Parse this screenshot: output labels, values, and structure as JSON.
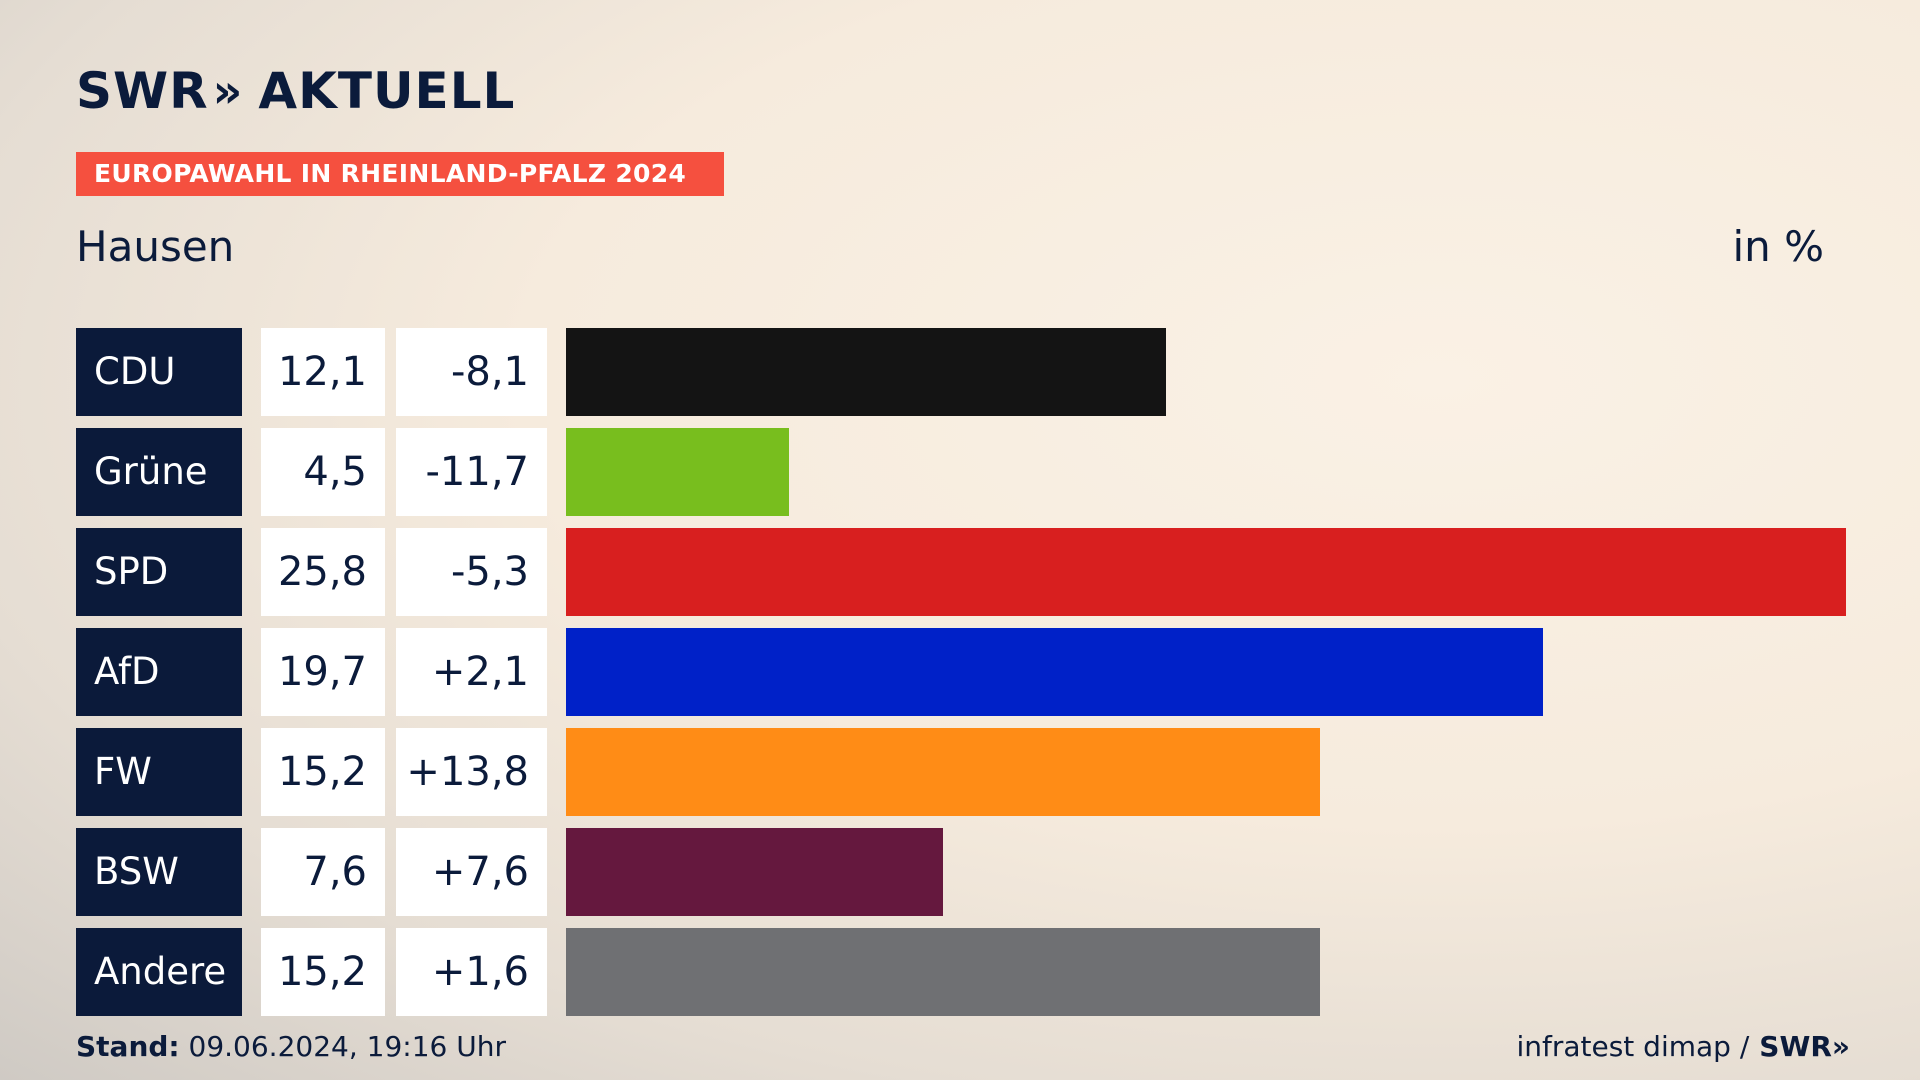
{
  "brand": {
    "swr": "SWR",
    "chevron": "»",
    "aktuell": "AKTUELL"
  },
  "banner": "EUROPAWAHL IN RHEINLAND-PFALZ 2024",
  "region": "Hausen",
  "unit": "in %",
  "footer": {
    "stand_label": "Stand:",
    "stand_value": " 09.06.2024, 19:16 Uhr",
    "source": "infratest dimap /",
    "source_brand": "SWR",
    "source_chevron": "»"
  },
  "chart_data": {
    "type": "bar",
    "orientation": "horizontal",
    "categories": [
      "CDU",
      "Grüne",
      "SPD",
      "AfD",
      "FW",
      "BSW",
      "Andere"
    ],
    "values": [
      12.1,
      4.5,
      25.8,
      19.7,
      15.2,
      7.6,
      15.2
    ],
    "value_labels": [
      "12,1",
      "4,5",
      "25,8",
      "19,7",
      "15,2",
      "7,6",
      "15,2"
    ],
    "change_labels": [
      "-8,1",
      "-11,7",
      "-5,3",
      "+2,1",
      "+13,8",
      "+7,6",
      "+1,6"
    ],
    "changes": [
      -8.1,
      -11.7,
      -5.3,
      2.1,
      13.8,
      7.6,
      1.6
    ],
    "colors": [
      "#141414",
      "#78be1e",
      "#d81f1f",
      "#0021c8",
      "#ff8c16",
      "#65183e",
      "#6f7073"
    ],
    "xlim": [
      0,
      25.8
    ]
  }
}
